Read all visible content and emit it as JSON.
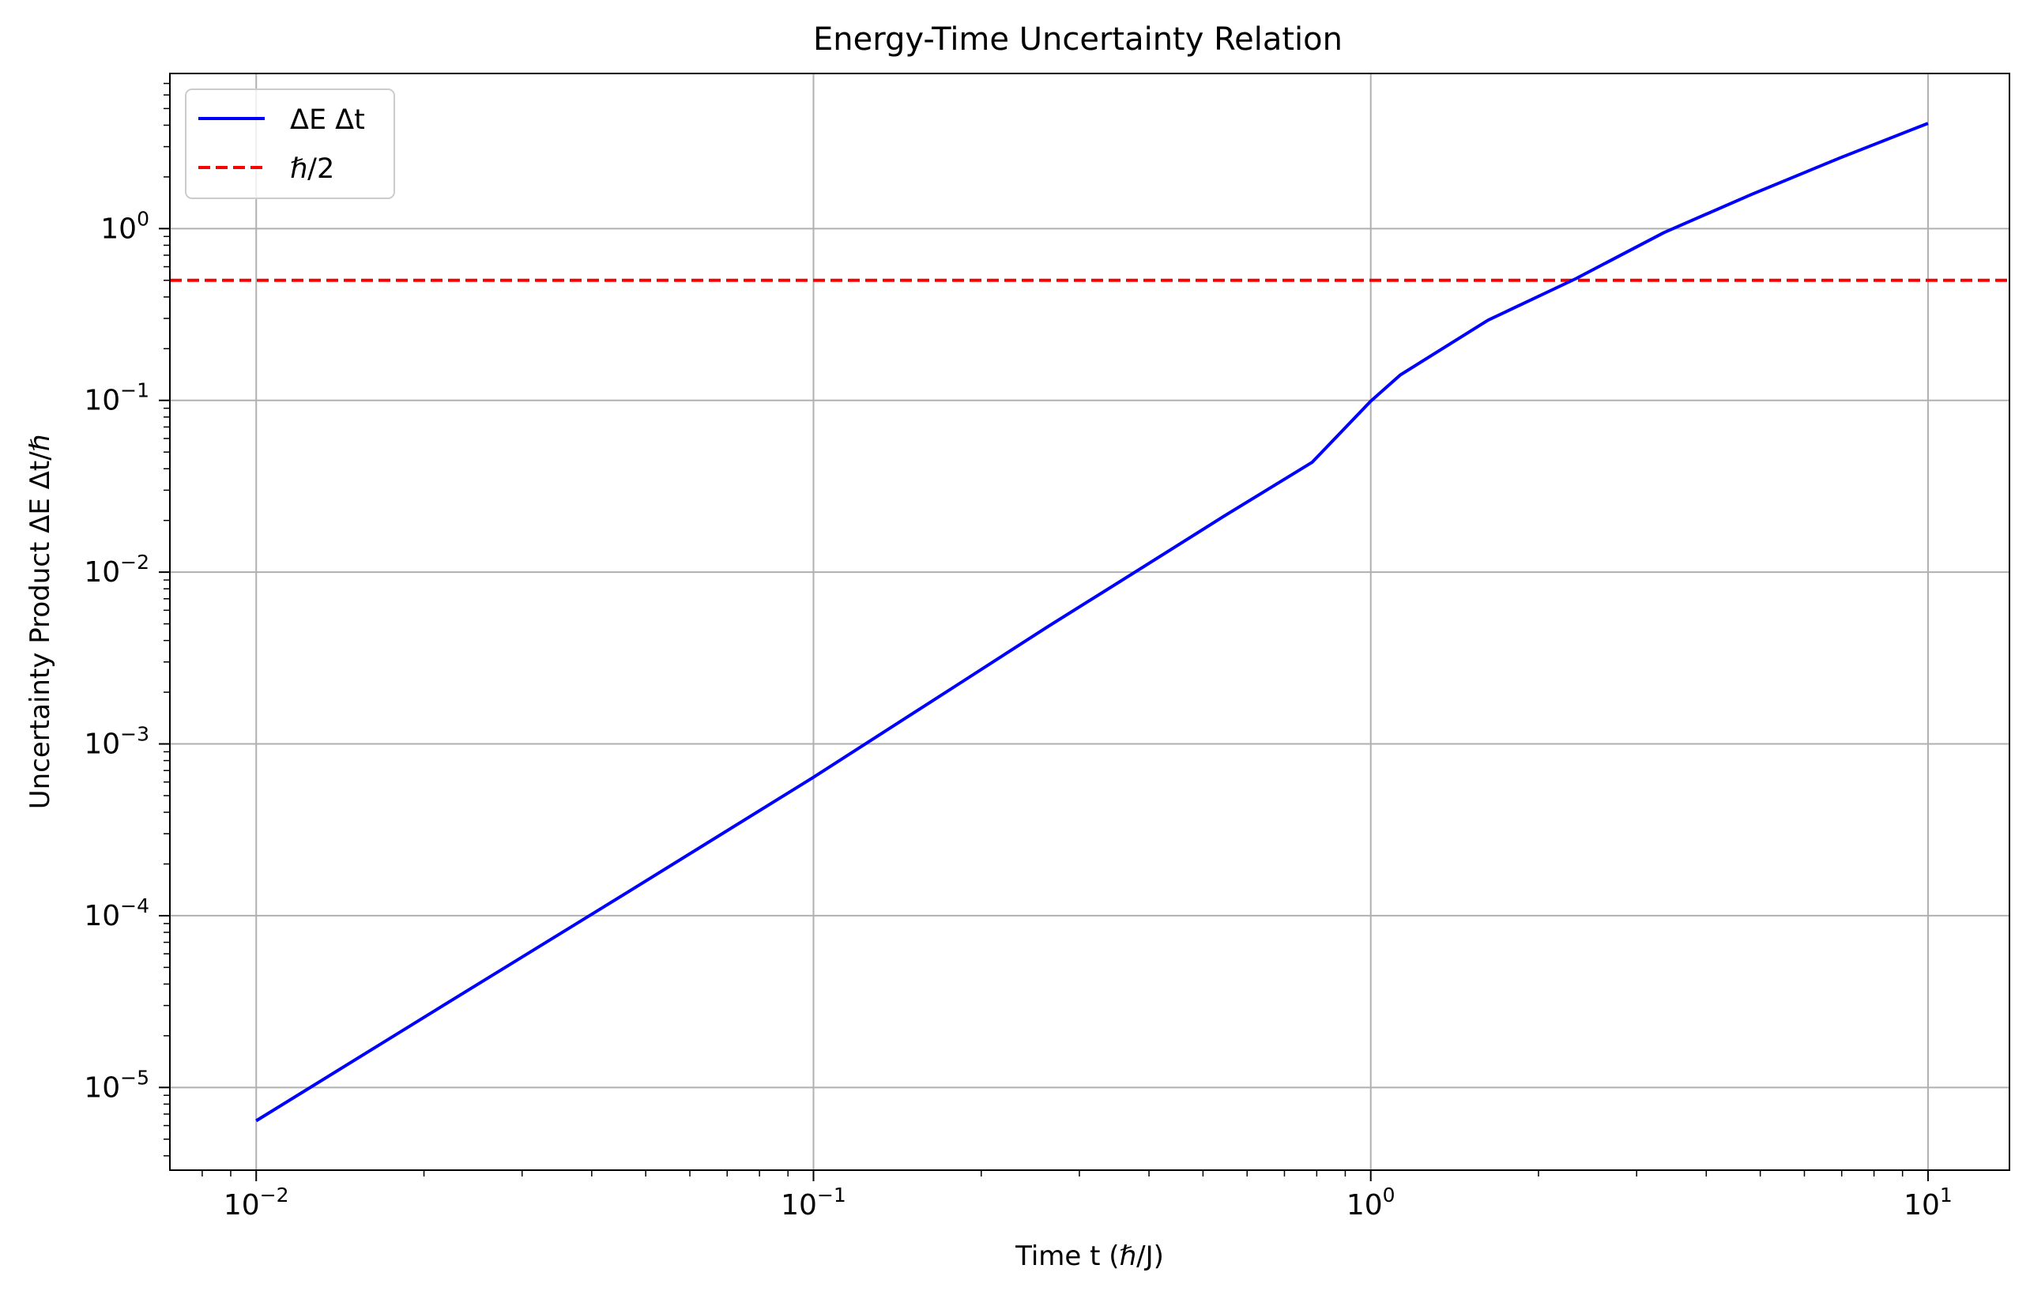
{
  "colors": {
    "series": "#0000ff",
    "reference": "#ff0000",
    "grid": "#b0b0b0",
    "axes": "#000000",
    "legend_border": "#cccccc"
  },
  "chart_data": {
    "type": "line",
    "title": "Energy-Time Uncertainty Relation",
    "xlabel": "Time t (ℏ/J)",
    "ylabel": "Uncertainty Product ΔE Δt/ℏ",
    "xscale": "log",
    "yscale": "log",
    "xlim": [
      0.007,
      14
    ],
    "ylim": [
      3.3e-06,
      8
    ],
    "grid": true,
    "legend_position": "top-left",
    "x_ticks": [
      {
        "base": "10",
        "exp": "−2",
        "value": 0.01
      },
      {
        "base": "10",
        "exp": "−1",
        "value": 0.1
      },
      {
        "base": "10",
        "exp": "0",
        "value": 1
      },
      {
        "base": "10",
        "exp": "1",
        "value": 10
      }
    ],
    "y_ticks": [
      {
        "base": "10",
        "exp": "0",
        "value": 1
      },
      {
        "base": "10",
        "exp": "−1",
        "value": 0.1
      },
      {
        "base": "10",
        "exp": "−2",
        "value": 0.01
      },
      {
        "base": "10",
        "exp": "−3",
        "value": 0.001
      },
      {
        "base": "10",
        "exp": "−4",
        "value": 0.0001
      },
      {
        "base": "10",
        "exp": "−5",
        "value": 1e-05
      }
    ],
    "series": [
      {
        "name": "ΔE Δt",
        "style": "solid",
        "color": "#0000ff",
        "x": [
          0.01,
          0.0215,
          0.0464,
          0.1,
          0.1833,
          0.2637,
          0.3793,
          0.5456,
          0.7848,
          1.0,
          1.129,
          1.624,
          2.336,
          3.36,
          4.833,
          6.952,
          10.0
        ],
        "y": [
          6.4e-06,
          2.96e-05,
          0.000137,
          0.00064,
          0.00226,
          0.00483,
          0.0101,
          0.0212,
          0.0436,
          0.099,
          0.1404,
          0.2932,
          0.5123,
          0.9483,
          1.5853,
          2.5822,
          4.1
        ]
      },
      {
        "name": "ℏ/2",
        "style": "dashed",
        "color": "#ff0000",
        "y_constant": 0.5
      }
    ]
  }
}
